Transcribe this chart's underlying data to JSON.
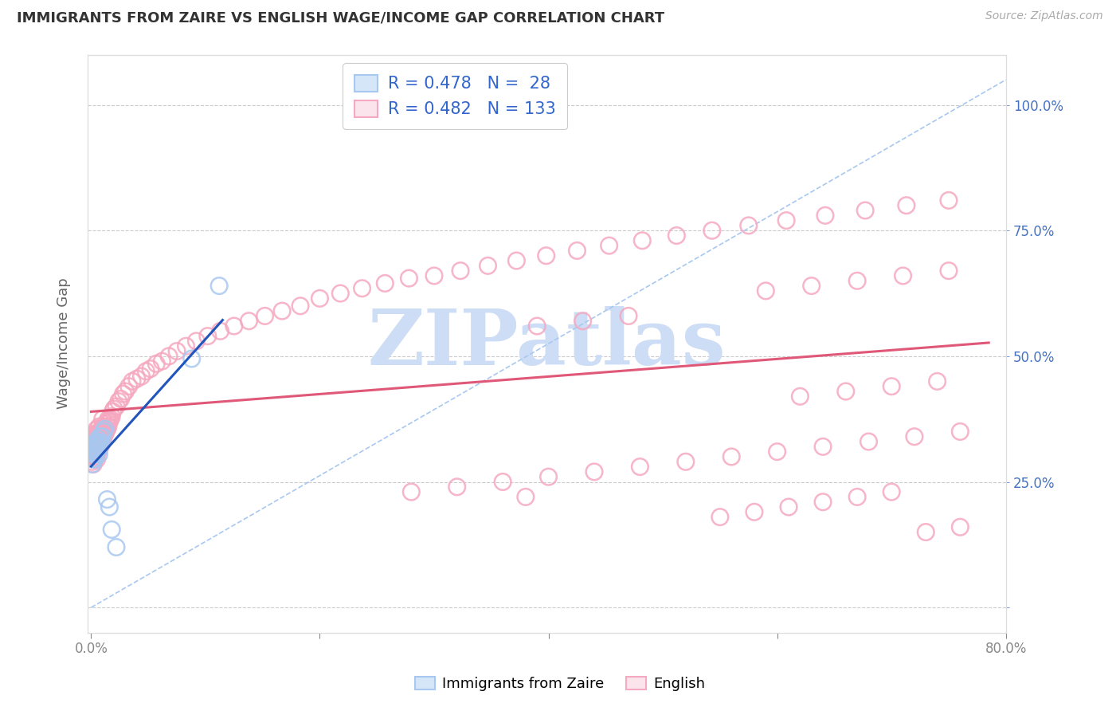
{
  "title": "IMMIGRANTS FROM ZAIRE VS ENGLISH WAGE/INCOME GAP CORRELATION CHART",
  "source": "Source: ZipAtlas.com",
  "ylabel": "Wage/Income Gap",
  "xlim": [
    -0.003,
    0.8
  ],
  "ylim": [
    -0.05,
    1.1
  ],
  "blue_R": 0.478,
  "blue_N": 28,
  "pink_R": 0.482,
  "pink_N": 133,
  "blue_color": "#a8c8f0",
  "pink_color": "#f5a8c0",
  "blue_line_color": "#2255bb",
  "pink_line_color": "#e05878",
  "dash_color": "#a8c8f0",
  "watermark_color": "#ccddf5",
  "background_color": "#ffffff",
  "legend_R_N_color": "#3366cc",
  "blue_x": [
    0.001,
    0.001,
    0.002,
    0.002,
    0.003,
    0.003,
    0.003,
    0.004,
    0.004,
    0.005,
    0.005,
    0.005,
    0.006,
    0.006,
    0.007,
    0.007,
    0.008,
    0.008,
    0.009,
    0.01,
    0.011,
    0.012,
    0.014,
    0.016,
    0.018,
    0.022,
    0.088,
    0.112
  ],
  "blue_y": [
    0.285,
    0.295,
    0.305,
    0.315,
    0.295,
    0.31,
    0.32,
    0.305,
    0.32,
    0.31,
    0.325,
    0.33,
    0.315,
    0.335,
    0.305,
    0.32,
    0.325,
    0.34,
    0.328,
    0.34,
    0.35,
    0.355,
    0.215,
    0.2,
    0.155,
    0.12,
    0.495,
    0.64
  ],
  "pink_x": [
    0.001,
    0.001,
    0.001,
    0.002,
    0.002,
    0.002,
    0.002,
    0.003,
    0.003,
    0.003,
    0.003,
    0.003,
    0.004,
    0.004,
    0.004,
    0.004,
    0.005,
    0.005,
    0.005,
    0.005,
    0.005,
    0.006,
    0.006,
    0.006,
    0.006,
    0.007,
    0.007,
    0.007,
    0.007,
    0.008,
    0.008,
    0.008,
    0.009,
    0.009,
    0.009,
    0.01,
    0.01,
    0.01,
    0.01,
    0.011,
    0.011,
    0.012,
    0.012,
    0.013,
    0.013,
    0.014,
    0.014,
    0.015,
    0.015,
    0.016,
    0.017,
    0.018,
    0.019,
    0.02,
    0.022,
    0.024,
    0.026,
    0.028,
    0.03,
    0.033,
    0.036,
    0.04,
    0.044,
    0.048,
    0.052,
    0.057,
    0.062,
    0.068,
    0.075,
    0.083,
    0.092,
    0.102,
    0.113,
    0.125,
    0.138,
    0.152,
    0.167,
    0.183,
    0.2,
    0.218,
    0.237,
    0.257,
    0.278,
    0.3,
    0.323,
    0.347,
    0.372,
    0.398,
    0.425,
    0.453,
    0.482,
    0.512,
    0.543,
    0.575,
    0.608,
    0.642,
    0.677,
    0.713,
    0.75,
    0.39,
    0.43,
    0.47,
    0.38,
    0.28,
    0.32,
    0.36,
    0.4,
    0.44,
    0.48,
    0.52,
    0.56,
    0.6,
    0.64,
    0.68,
    0.72,
    0.76,
    0.62,
    0.66,
    0.7,
    0.74,
    0.55,
    0.58,
    0.61,
    0.64,
    0.67,
    0.7,
    0.73,
    0.76,
    0.59,
    0.63,
    0.67,
    0.71,
    0.75
  ],
  "pink_y": [
    0.29,
    0.305,
    0.32,
    0.285,
    0.3,
    0.315,
    0.33,
    0.295,
    0.31,
    0.32,
    0.335,
    0.345,
    0.3,
    0.315,
    0.33,
    0.345,
    0.295,
    0.31,
    0.325,
    0.34,
    0.355,
    0.31,
    0.325,
    0.34,
    0.355,
    0.315,
    0.33,
    0.345,
    0.36,
    0.32,
    0.335,
    0.35,
    0.325,
    0.34,
    0.355,
    0.33,
    0.345,
    0.36,
    0.375,
    0.34,
    0.355,
    0.345,
    0.36,
    0.35,
    0.365,
    0.355,
    0.37,
    0.36,
    0.375,
    0.37,
    0.375,
    0.38,
    0.39,
    0.395,
    0.4,
    0.41,
    0.415,
    0.425,
    0.43,
    0.44,
    0.45,
    0.455,
    0.46,
    0.47,
    0.475,
    0.485,
    0.49,
    0.5,
    0.51,
    0.52,
    0.53,
    0.54,
    0.55,
    0.56,
    0.57,
    0.58,
    0.59,
    0.6,
    0.615,
    0.625,
    0.635,
    0.645,
    0.655,
    0.66,
    0.67,
    0.68,
    0.69,
    0.7,
    0.71,
    0.72,
    0.73,
    0.74,
    0.75,
    0.76,
    0.77,
    0.78,
    0.79,
    0.8,
    0.81,
    0.56,
    0.57,
    0.58,
    0.22,
    0.23,
    0.24,
    0.25,
    0.26,
    0.27,
    0.28,
    0.29,
    0.3,
    0.31,
    0.32,
    0.33,
    0.34,
    0.35,
    0.42,
    0.43,
    0.44,
    0.45,
    0.18,
    0.19,
    0.2,
    0.21,
    0.22,
    0.23,
    0.15,
    0.16,
    0.63,
    0.64,
    0.65,
    0.66,
    0.67
  ]
}
